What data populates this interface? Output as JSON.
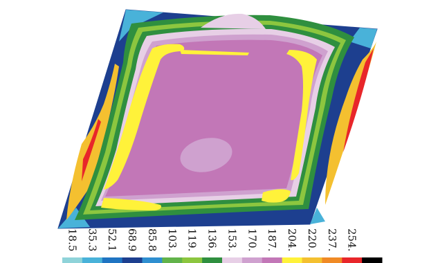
{
  "figure": {
    "kind": "skewed-plate contour plot"
  },
  "colorbar": {
    "levels": [
      "18.5",
      "35.3",
      "52.1",
      "68.9",
      "85.8",
      "103.",
      "119.",
      "136.",
      "153.",
      "170.",
      "187.",
      "204.",
      "220.",
      "237.",
      "254."
    ],
    "colors": [
      "#8fd3d9",
      "#49b2d9",
      "#1f74c2",
      "#1d3f8f",
      "#2f8fd0",
      "#62b34a",
      "#8cc63f",
      "#2f8f3f",
      "#e7cfe6",
      "#cfa1cf",
      "#c277b7",
      "#fff23a",
      "#f4c030",
      "#f08a25",
      "#e8262a",
      "#000000"
    ]
  }
}
